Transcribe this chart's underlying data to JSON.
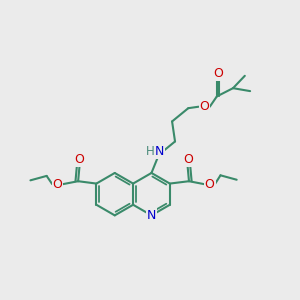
{
  "bg_color": "#ebebeb",
  "bond_color": "#3a8a6a",
  "bond_width": 1.5,
  "atom_colors": {
    "O": "#cc0000",
    "N": "#0000cc",
    "H": "#4a8a7a",
    "C": "#3a8a6a"
  }
}
